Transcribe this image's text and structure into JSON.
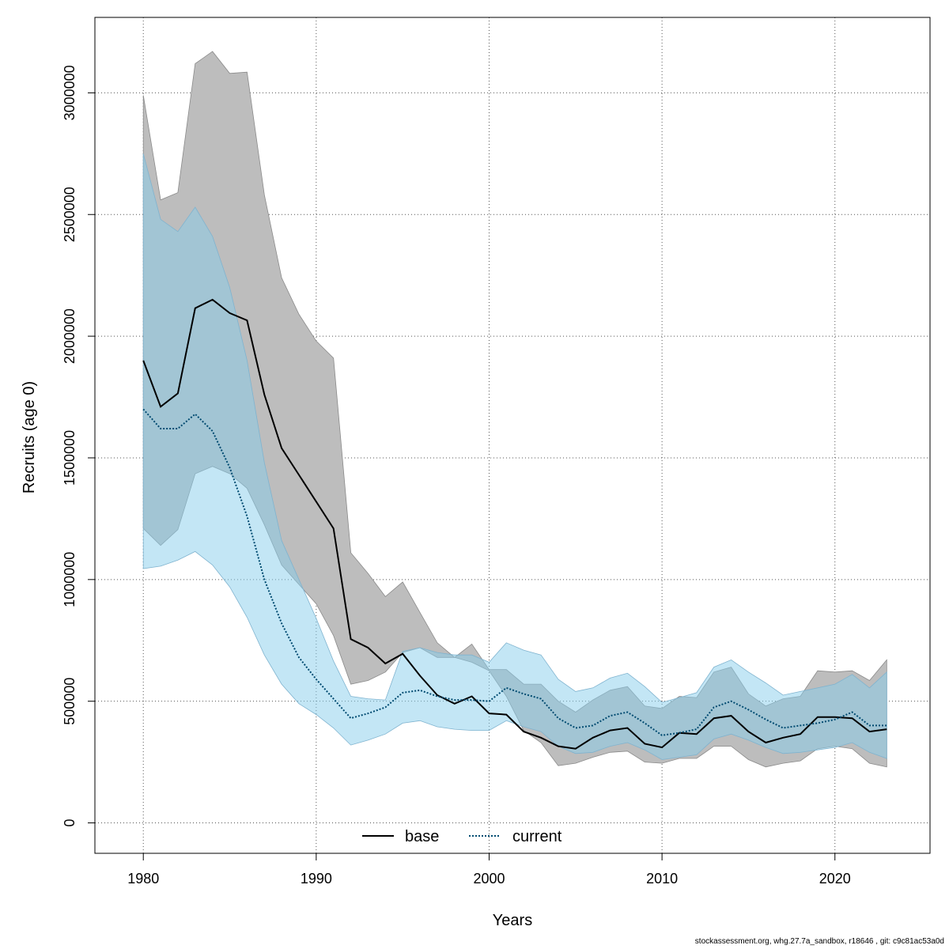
{
  "chart_data": {
    "type": "line",
    "title": "",
    "xlabel": "Years",
    "ylabel": "Recruits (age 0)",
    "xlim": [
      1977.2,
      2025.5
    ],
    "ylim": [
      -125000,
      3310000
    ],
    "xticks": [
      1980,
      1990,
      2000,
      2010,
      2020
    ],
    "yticks": [
      0,
      500000,
      1000000,
      1500000,
      2000000,
      2500000,
      3000000
    ],
    "grid": true,
    "legend_position": "bottom-center",
    "x": [
      1980,
      1981,
      1982,
      1983,
      1984,
      1985,
      1986,
      1987,
      1988,
      1989,
      1990,
      1991,
      1992,
      1993,
      1994,
      1995,
      1996,
      1997,
      1998,
      1999,
      2000,
      2001,
      2002,
      2003,
      2004,
      2005,
      2006,
      2007,
      2008,
      2009,
      2010,
      2011,
      2012,
      2013,
      2014,
      2015,
      2016,
      2017,
      2018,
      2019,
      2020,
      2021,
      2022,
      2023
    ],
    "series": [
      {
        "name": "base",
        "line_style": "solid",
        "color": "#000000",
        "band_color": "#bdbdbd",
        "values": [
          1900000,
          1710000,
          1765000,
          2115000,
          2150000,
          2095000,
          2065000,
          1760000,
          1540000,
          1430000,
          1320000,
          1210000,
          755000,
          720000,
          655000,
          695000,
          605000,
          525000,
          490000,
          520000,
          450000,
          445000,
          375000,
          350000,
          315000,
          305000,
          350000,
          380000,
          390000,
          325000,
          310000,
          370000,
          365000,
          430000,
          440000,
          375000,
          330000,
          350000,
          365000,
          435000,
          435000,
          430000,
          375000,
          385000
        ],
        "upper": [
          2990000,
          2560000,
          2590000,
          3120000,
          3170000,
          3080000,
          3085000,
          2580000,
          2240000,
          2090000,
          1980000,
          1910000,
          1110000,
          1025000,
          930000,
          990000,
          865000,
          740000,
          680000,
          735000,
          630000,
          630000,
          570000,
          570000,
          500000,
          455000,
          505000,
          545000,
          560000,
          480000,
          470000,
          520000,
          515000,
          620000,
          640000,
          530000,
          480000,
          510000,
          520000,
          625000,
          620000,
          625000,
          585000,
          670000
        ],
        "lower": [
          1210000,
          1140000,
          1205000,
          1435000,
          1465000,
          1435000,
          1375000,
          1225000,
          1060000,
          980000,
          900000,
          770000,
          570000,
          585000,
          620000,
          700000,
          720000,
          680000,
          680000,
          660000,
          625000,
          520000,
          380000,
          330000,
          235000,
          245000,
          270000,
          290000,
          295000,
          250000,
          245000,
          265000,
          265000,
          315000,
          315000,
          260000,
          230000,
          245000,
          255000,
          305000,
          315000,
          305000,
          245000,
          230000
        ]
      },
      {
        "name": "current",
        "line_style": "dotted",
        "color": "#004b71",
        "band_color": "#87ceeb",
        "values": [
          1700000,
          1620000,
          1620000,
          1680000,
          1610000,
          1460000,
          1260000,
          1000000,
          820000,
          680000,
          590000,
          510000,
          430000,
          450000,
          475000,
          535000,
          545000,
          520000,
          505000,
          505000,
          500000,
          555000,
          530000,
          510000,
          430000,
          390000,
          400000,
          440000,
          455000,
          410000,
          360000,
          370000,
          385000,
          475000,
          500000,
          465000,
          425000,
          390000,
          400000,
          410000,
          425000,
          455000,
          400000,
          400000
        ],
        "upper": [
          2750000,
          2480000,
          2430000,
          2530000,
          2410000,
          2200000,
          1900000,
          1480000,
          1160000,
          1000000,
          840000,
          665000,
          520000,
          510000,
          505000,
          705000,
          720000,
          700000,
          690000,
          690000,
          660000,
          740000,
          710000,
          690000,
          590000,
          540000,
          555000,
          595000,
          615000,
          560000,
          495000,
          515000,
          535000,
          640000,
          670000,
          620000,
          575000,
          525000,
          540000,
          555000,
          570000,
          610000,
          555000,
          620000
        ],
        "lower": [
          1045000,
          1055000,
          1080000,
          1115000,
          1060000,
          970000,
          845000,
          690000,
          570000,
          490000,
          445000,
          390000,
          320000,
          340000,
          365000,
          410000,
          420000,
          395000,
          385000,
          380000,
          380000,
          420000,
          395000,
          375000,
          315000,
          285000,
          290000,
          315000,
          330000,
          300000,
          260000,
          270000,
          280000,
          345000,
          365000,
          340000,
          310000,
          285000,
          290000,
          300000,
          310000,
          330000,
          290000,
          265000
        ]
      }
    ]
  },
  "footer_text": "stockassessment.org, whg.27.7a_sandbox, r18646 , git: c9c81ac53a0d"
}
